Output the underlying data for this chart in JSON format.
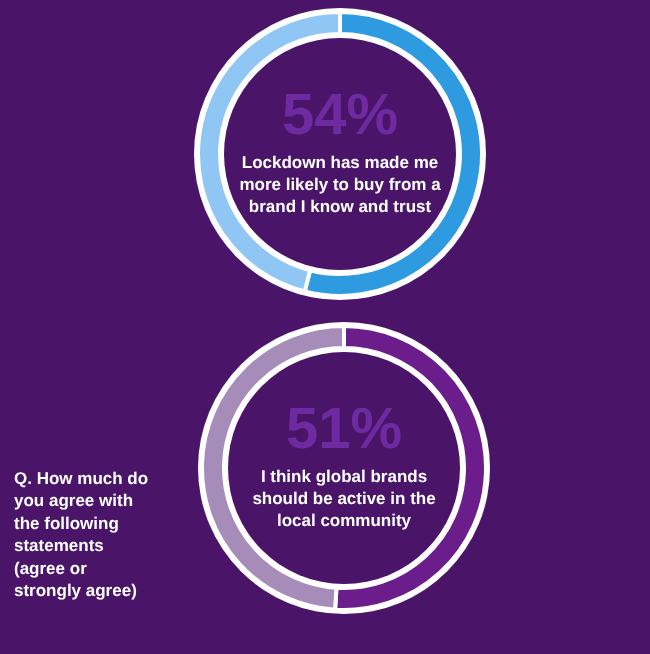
{
  "chart_data": [
    {
      "type": "donut",
      "title": "Lockdown has made me more likely to buy from a brand I know and trust",
      "categories": [
        null,
        null
      ],
      "values": [
        54,
        46
      ],
      "colors": [
        "#2e9ae0",
        "#8fc6f3"
      ],
      "value_labels": [
        "54%",
        null
      ]
    },
    {
      "type": "donut",
      "title": "I think global brands should be active in the local community",
      "categories": [
        null,
        null
      ],
      "values": [
        51,
        49
      ],
      "colors": [
        "#6b1d8c",
        "#a68cb8"
      ],
      "value_labels": [
        "51%",
        null
      ],
      "annotations": [
        "Q. How much do you agree with the following statements (agree or strongly agree)"
      ]
    }
  ]
}
